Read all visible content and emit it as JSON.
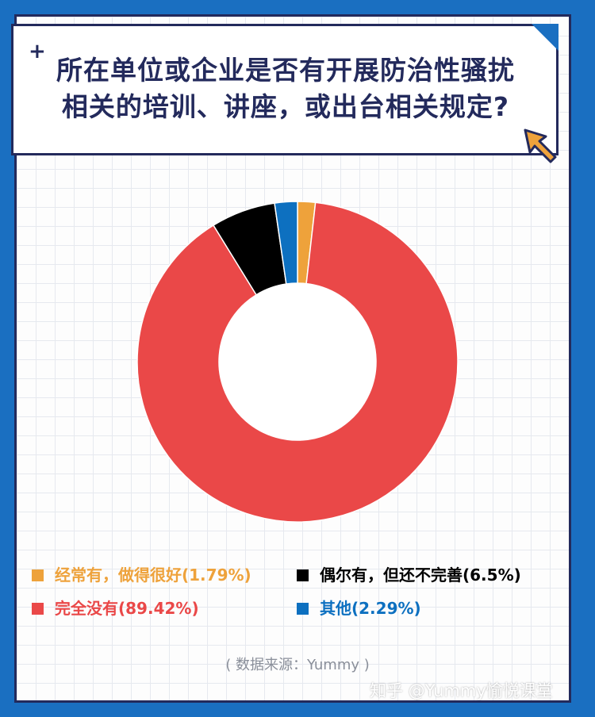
{
  "header": {
    "plus_symbol": "+",
    "title_line1": "所在单位或企业是否有开展防治性骚扰",
    "title_line2": "相关的培训、讲座，或出台相关规定?"
  },
  "chart_data": {
    "type": "pie",
    "variant": "donut",
    "title": "所在单位或企业是否有开展防治性骚扰相关的培训、讲座，或出台相关规定?",
    "legend_placement": "bottom",
    "slices": [
      {
        "label": "经常有，做得很好(1.79%)",
        "value": 1.79,
        "color": "#eea23b"
      },
      {
        "label": "完全没有(89.42%)",
        "value": 89.42,
        "color": "#ea4848"
      },
      {
        "label": "偶尔有，但还不完善(6.5%)",
        "value": 6.5,
        "color": "#000000"
      },
      {
        "label": "其他(2.29%)",
        "value": 2.29,
        "color": "#0d70c0"
      }
    ]
  },
  "legend_text_colors": [
    "#eea23b",
    "#000000",
    "#ea4848",
    "#0d70c0"
  ],
  "source": "( 数据来源：Yummy )",
  "watermark": "知乎 @Yummy愉悦课堂",
  "colors": {
    "frame": "#1a6fc1",
    "border": "#232a5c",
    "cursor": "#eea23b"
  },
  "icons": {
    "cursor": "pointer-arrow-icon",
    "plus": "plus-icon"
  }
}
